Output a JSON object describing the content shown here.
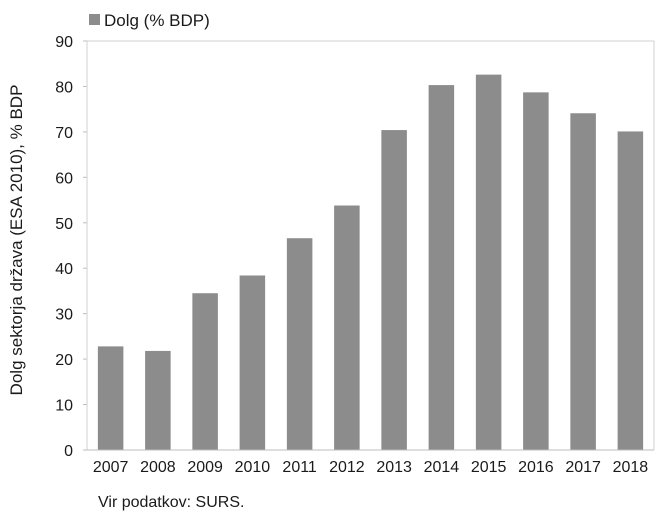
{
  "chart_data": {
    "type": "bar",
    "categories": [
      "2007",
      "2008",
      "2009",
      "2010",
      "2011",
      "2012",
      "2013",
      "2014",
      "2015",
      "2016",
      "2017",
      "2018"
    ],
    "series": [
      {
        "name": "Dolg (% BDP)",
        "values": [
          22.8,
          21.8,
          34.5,
          38.4,
          46.6,
          53.8,
          70.4,
          80.3,
          82.6,
          78.7,
          74.1,
          70.1
        ]
      }
    ],
    "ylabel": "Dolg sektorja država (ESA 2010), % BDP",
    "xlabel": "",
    "ylim": [
      0,
      90
    ],
    "yticks": [
      0,
      10,
      20,
      30,
      40,
      50,
      60,
      70,
      80,
      90
    ],
    "grid": false,
    "legend_position": "top-left",
    "bar_color": "#8c8c8c",
    "source": "Vir podatkov: SURS."
  }
}
